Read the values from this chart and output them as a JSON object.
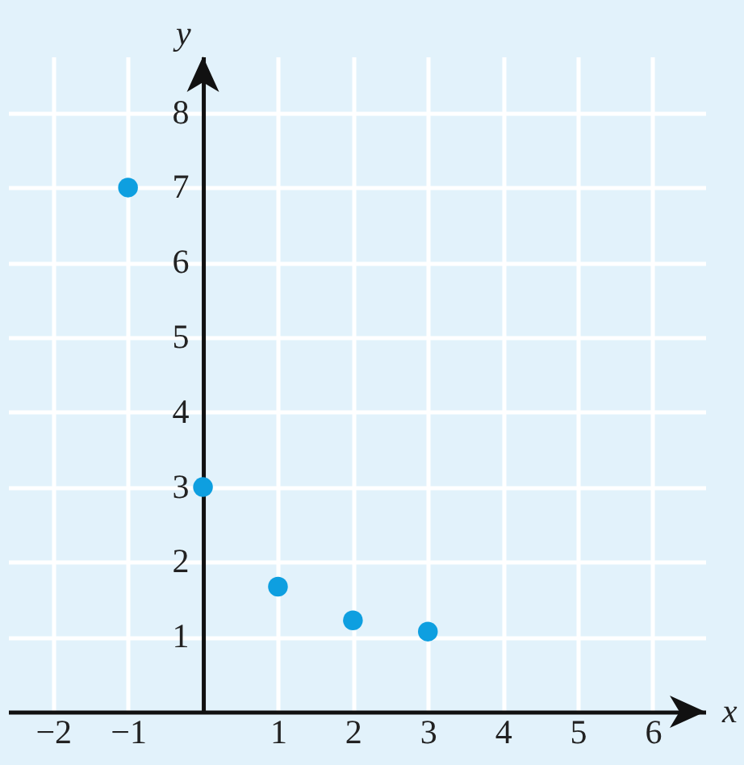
{
  "chart_data": {
    "type": "scatter",
    "xlabel": "x",
    "ylabel": "y",
    "x": [
      -1,
      0,
      1,
      2,
      3
    ],
    "series": [
      {
        "color": "#0e9fe0",
        "values": [
          7,
          3,
          1.67,
          1.22,
          1.07
        ]
      }
    ],
    "xlim": [
      -2.6,
      6.7
    ],
    "ylim": [
      0,
      8.75
    ],
    "xticks": [
      -2,
      -1,
      1,
      2,
      3,
      4,
      5,
      6
    ],
    "yticks": [
      1,
      2,
      3,
      4,
      5,
      6,
      7,
      8
    ],
    "grid": true,
    "marker": "circle"
  }
}
